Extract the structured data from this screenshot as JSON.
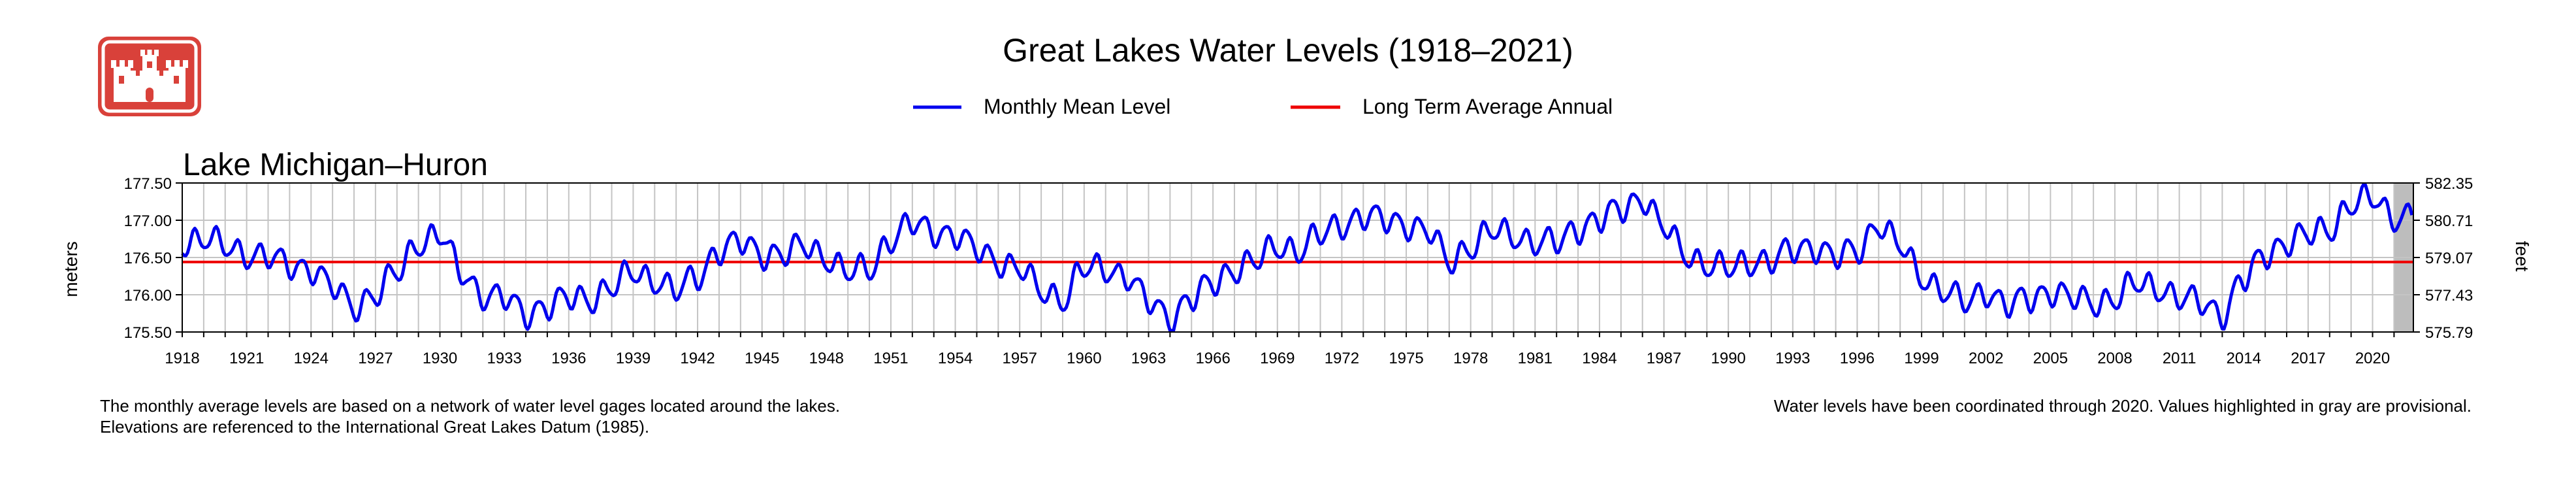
{
  "chart_data": {
    "type": "line",
    "title": "Great Lakes Water Levels (1918–2021)",
    "subtitle": "Lake Michigan–Huron",
    "ylabel": "meters",
    "ylabel_right": "feet",
    "xlim": [
      1918,
      2021.9
    ],
    "ylim": [
      175.5,
      177.5
    ],
    "ylim_right": [
      575.79,
      582.35
    ],
    "x_ticks": [
      1918,
      1921,
      1924,
      1927,
      1930,
      1933,
      1936,
      1939,
      1942,
      1945,
      1948,
      1951,
      1954,
      1957,
      1960,
      1963,
      1966,
      1969,
      1972,
      1975,
      1978,
      1981,
      1984,
      1987,
      1990,
      1993,
      1996,
      1999,
      2002,
      2005,
      2008,
      2011,
      2014,
      2017,
      2020
    ],
    "y_ticks_left": [
      "177.50",
      "177.00",
      "176.50",
      "176.00",
      "175.50"
    ],
    "y_ticks_right": [
      "582.35",
      "580.71",
      "579.07",
      "577.43",
      "575.79"
    ],
    "grid": true,
    "legend_position": "top-center",
    "provisional_range": [
      2021,
      2021.9
    ],
    "series": [
      {
        "name": "Monthly Mean Level",
        "color": "#0000ee",
        "annual_points": [
          [
            1918,
            176.7
          ],
          [
            1919,
            176.75
          ],
          [
            1920,
            176.65
          ],
          [
            1921,
            176.55
          ],
          [
            1922,
            176.5
          ],
          [
            1923,
            176.4
          ],
          [
            1924,
            176.35
          ],
          [
            1925,
            176.1
          ],
          [
            1926,
            175.85
          ],
          [
            1927,
            176.0
          ],
          [
            1928,
            176.3
          ],
          [
            1929,
            176.7
          ],
          [
            1930,
            176.8
          ],
          [
            1931,
            176.3
          ],
          [
            1932,
            176.0
          ],
          [
            1933,
            175.95
          ],
          [
            1934,
            175.75
          ],
          [
            1935,
            175.85
          ],
          [
            1936,
            175.95
          ],
          [
            1937,
            175.95
          ],
          [
            1938,
            176.1
          ],
          [
            1939,
            176.3
          ],
          [
            1940,
            176.2
          ],
          [
            1941,
            176.05
          ],
          [
            1942,
            176.25
          ],
          [
            1943,
            176.6
          ],
          [
            1944,
            176.7
          ],
          [
            1945,
            176.55
          ],
          [
            1946,
            176.55
          ],
          [
            1947,
            176.65
          ],
          [
            1948,
            176.5
          ],
          [
            1949,
            176.3
          ],
          [
            1950,
            176.35
          ],
          [
            1951,
            176.75
          ],
          [
            1952,
            176.95
          ],
          [
            1953,
            176.85
          ],
          [
            1954,
            176.8
          ],
          [
            1955,
            176.6
          ],
          [
            1956,
            176.45
          ],
          [
            1957,
            176.35
          ],
          [
            1958,
            176.05
          ],
          [
            1959,
            175.95
          ],
          [
            1960,
            176.35
          ],
          [
            1961,
            176.35
          ],
          [
            1962,
            176.25
          ],
          [
            1963,
            175.9
          ],
          [
            1964,
            175.7
          ],
          [
            1965,
            175.95
          ],
          [
            1966,
            176.15
          ],
          [
            1967,
            176.35
          ],
          [
            1968,
            176.45
          ],
          [
            1969,
            176.65
          ],
          [
            1970,
            176.6
          ],
          [
            1971,
            176.8
          ],
          [
            1972,
            176.95
          ],
          [
            1973,
            177.05
          ],
          [
            1974,
            177.0
          ],
          [
            1975,
            176.95
          ],
          [
            1976,
            176.85
          ],
          [
            1977,
            176.45
          ],
          [
            1978,
            176.65
          ],
          [
            1979,
            176.85
          ],
          [
            1980,
            176.8
          ],
          [
            1981,
            176.7
          ],
          [
            1982,
            176.7
          ],
          [
            1983,
            176.9
          ],
          [
            1984,
            177.0
          ],
          [
            1985,
            177.15
          ],
          [
            1986,
            177.3
          ],
          [
            1987,
            176.9
          ],
          [
            1988,
            176.55
          ],
          [
            1989,
            176.4
          ],
          [
            1990,
            176.35
          ],
          [
            1991,
            176.45
          ],
          [
            1992,
            176.45
          ],
          [
            1993,
            176.6
          ],
          [
            1994,
            176.65
          ],
          [
            1995,
            176.5
          ],
          [
            1996,
            176.6
          ],
          [
            1997,
            176.95
          ],
          [
            1998,
            176.65
          ],
          [
            1999,
            176.25
          ],
          [
            2000,
            176.05
          ],
          [
            2001,
            175.9
          ],
          [
            2002,
            176.05
          ],
          [
            2003,
            175.85
          ],
          [
            2004,
            175.95
          ],
          [
            2005,
            176.05
          ],
          [
            2006,
            175.95
          ],
          [
            2007,
            175.9
          ],
          [
            2008,
            175.95
          ],
          [
            2009,
            176.15
          ],
          [
            2010,
            176.1
          ],
          [
            2011,
            175.95
          ],
          [
            2012,
            175.9
          ],
          [
            2013,
            175.75
          ],
          [
            2014,
            176.2
          ],
          [
            2015,
            176.55
          ],
          [
            2016,
            176.7
          ],
          [
            2017,
            176.8
          ],
          [
            2018,
            176.9
          ],
          [
            2019,
            177.2
          ],
          [
            2020,
            177.3
          ],
          [
            2021,
            177.05
          ]
        ]
      },
      {
        "name": "Long Term Average Annual",
        "color": "#ee0000",
        "value": 176.44
      }
    ]
  },
  "notes": {
    "left_line1": "The monthly average levels are based on a network of water level gages located around the lakes.",
    "left_line2": "Elevations are referenced to the International Great Lakes Datum (1985).",
    "right": "Water levels have been coordinated through 2020. Values highlighted in gray are provisional."
  },
  "logo": {
    "name": "castle-logo",
    "color": "#d9413a"
  }
}
